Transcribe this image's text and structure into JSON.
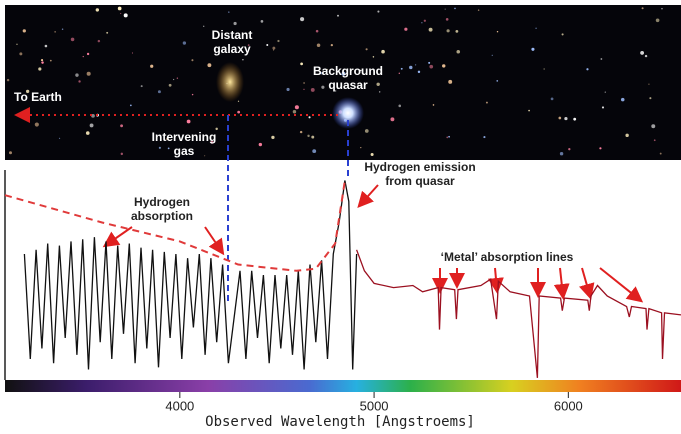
{
  "chart_data": {
    "type": "line",
    "xlabel": "Observed Wavelength [Angstroems]",
    "xlim": [
      3100,
      6580
    ],
    "xticks": [
      4000,
      5000,
      6000
    ],
    "ylim": [
      0,
      100
    ],
    "annotations": [
      {
        "lines": [
          "To Earth"
        ]
      },
      {
        "lines": [
          "Distant",
          "galaxy"
        ]
      },
      {
        "lines": [
          "Background",
          "quasar"
        ]
      },
      {
        "lines": [
          "Intervening",
          "gas"
        ]
      },
      {
        "lines": [
          "Hydrogen emission",
          "from quasar"
        ]
      },
      {
        "lines": [
          "Hydrogen",
          "absorption"
        ]
      },
      {
        "lines": [
          "‘Metal’ absorption lines"
        ]
      }
    ],
    "series": [
      {
        "color": "#111111",
        "style": "solid",
        "x": [
          3200,
          3230,
          3260,
          3290,
          3320,
          3350,
          3380,
          3410,
          3440,
          3470,
          3500,
          3530,
          3560,
          3590,
          3620,
          3650,
          3680,
          3710,
          3740,
          3770,
          3800,
          3830,
          3860,
          3890,
          3920,
          3950,
          3980,
          4010,
          4040,
          4070,
          4100,
          4130,
          4160,
          4190,
          4220,
          4250,
          4280,
          4310,
          4340,
          4370,
          4400,
          4430,
          4460,
          4490,
          4520,
          4550,
          4580,
          4610,
          4640,
          4670,
          4700,
          4730,
          4760,
          4790,
          4820,
          4850,
          4870,
          4890,
          4910
        ],
        "values": [
          60,
          10,
          62,
          15,
          65,
          8,
          64,
          20,
          66,
          12,
          67,
          5,
          68,
          18,
          66,
          10,
          64,
          22,
          65,
          8,
          63,
          15,
          62,
          6,
          61,
          20,
          60,
          10,
          58,
          25,
          60,
          12,
          58,
          18,
          55,
          8,
          30,
          52,
          10,
          52,
          20,
          50,
          8,
          50,
          15,
          50,
          12,
          52,
          5,
          55,
          18,
          57,
          10,
          60,
          75,
          95,
          85,
          5,
          60
        ]
      },
      {
        "color": "#9b1020",
        "style": "solid",
        "x": [
          4910,
          4950,
          5000,
          5100,
          5200,
          5250,
          5330,
          5337,
          5345,
          5415,
          5424,
          5432,
          5550,
          5600,
          5630,
          5640,
          5700,
          5800,
          5841,
          5850,
          5960,
          5969,
          5980,
          6100,
          6108,
          6116,
          6150,
          6200,
          6300,
          6314,
          6325,
          6400,
          6405,
          6415,
          6480,
          6485,
          6495,
          6580
        ],
        "values": [
          62,
          52,
          46,
          44,
          45,
          42,
          44,
          24,
          44,
          43,
          29,
          43,
          45,
          48,
          29,
          47,
          42,
          40,
          1,
          40,
          39,
          33,
          39,
          38,
          33,
          40,
          45,
          40,
          35,
          30,
          35,
          34,
          24,
          34,
          32,
          10,
          32,
          31
        ]
      },
      {
        "color": "#e03a3a",
        "style": "dashed",
        "x": [
          3100,
          3600,
          4000,
          4300,
          4600,
          4700,
          4800,
          4850
        ],
        "values": [
          88,
          75,
          66,
          55,
          52,
          53,
          65,
          95
        ]
      }
    ]
  }
}
